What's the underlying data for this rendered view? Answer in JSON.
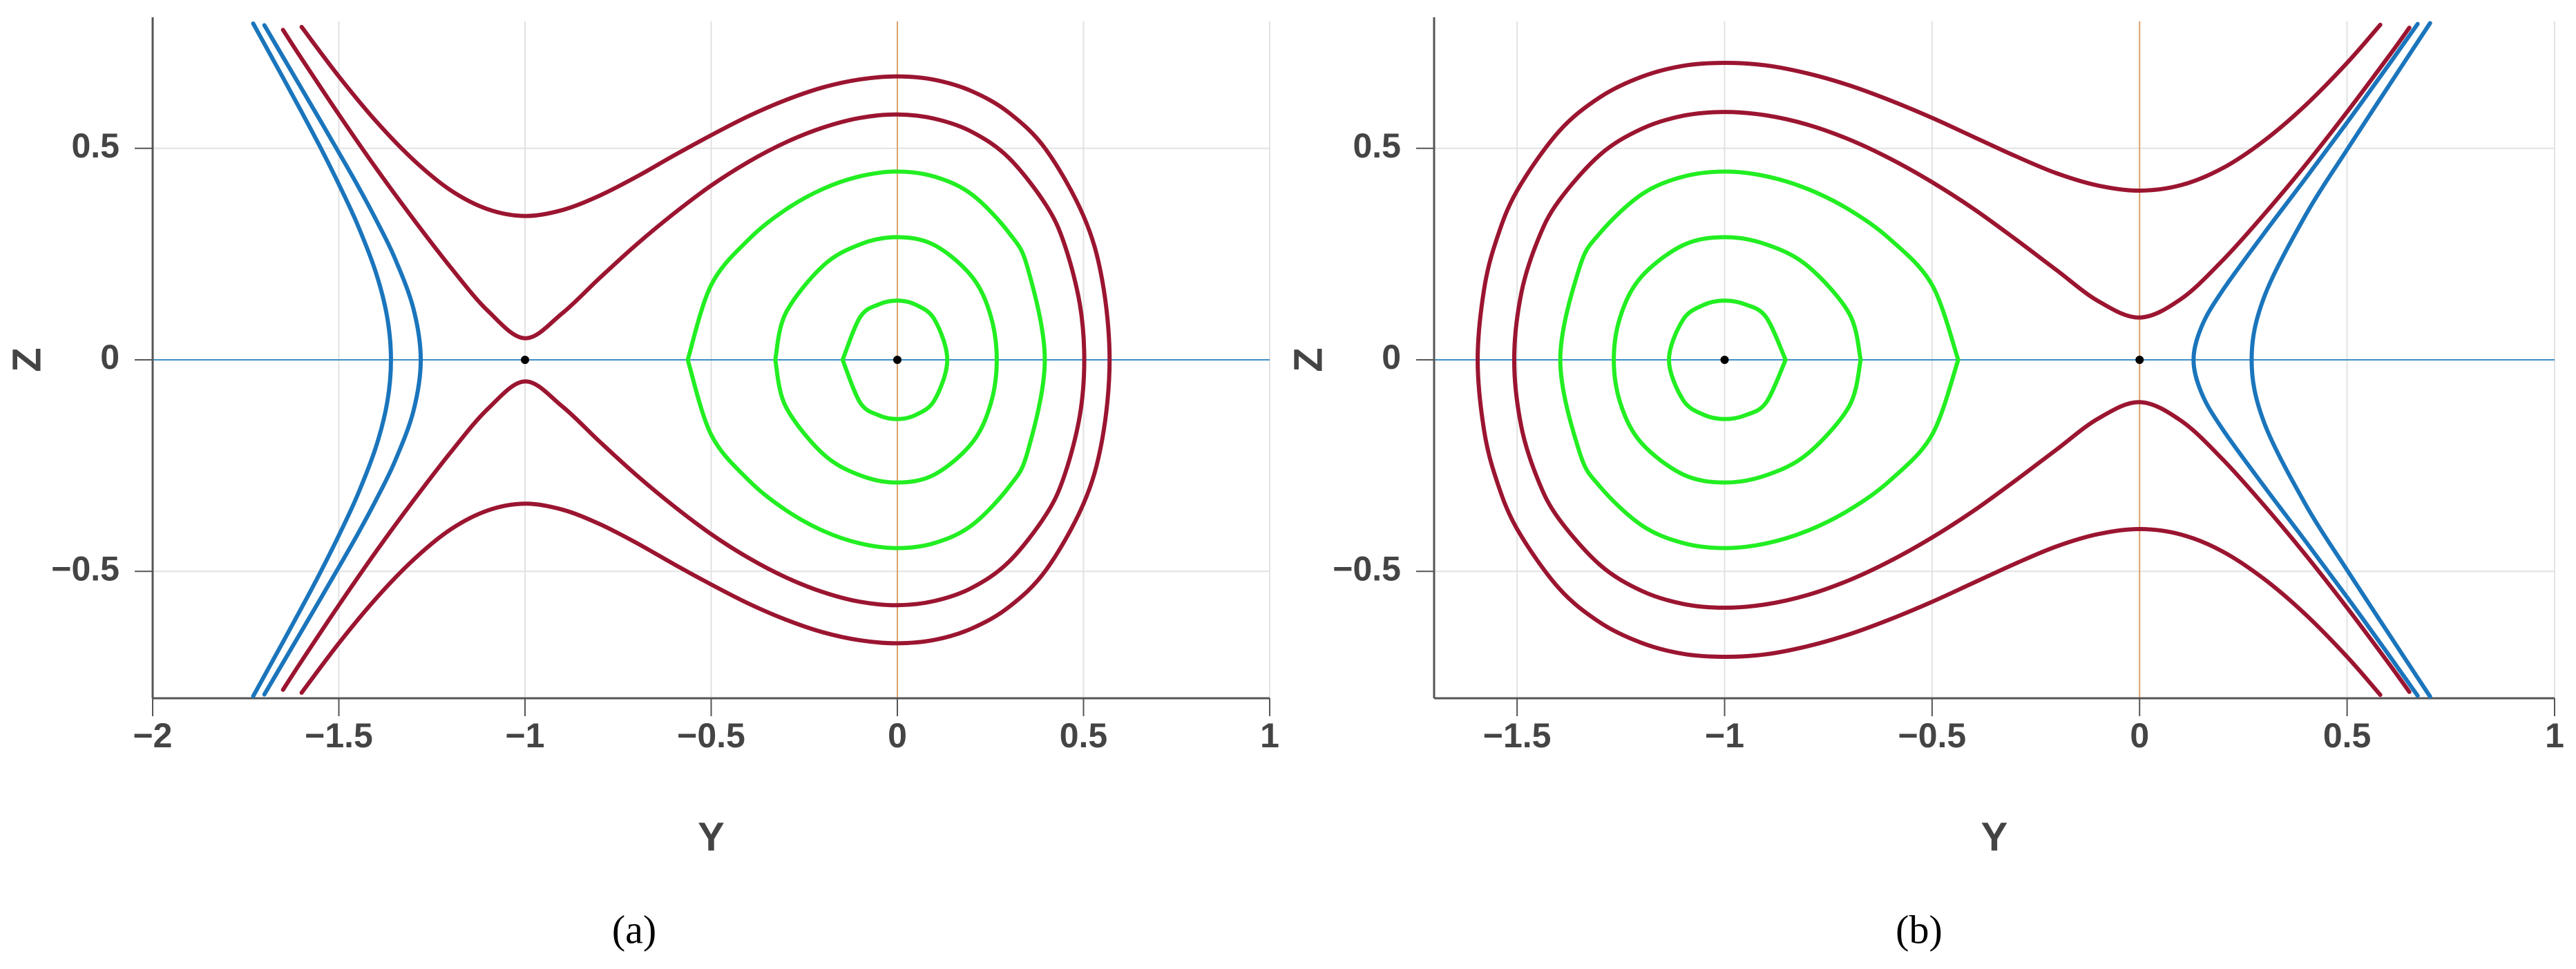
{
  "chart_data": [
    {
      "type": "line",
      "caption": "(a)",
      "xlabel": "Y",
      "ylabel": "Z",
      "xlim": [
        -2,
        1
      ],
      "ylim": [
        -0.8,
        0.8
      ],
      "xticks": [
        {
          "value": -2,
          "label": "−2"
        },
        {
          "value": -1.5,
          "label": "−1.5"
        },
        {
          "value": -1,
          "label": "−1"
        },
        {
          "value": -0.5,
          "label": "−0.5"
        },
        0,
        0.5,
        1
      ],
      "yticks": [
        {
          "value": -0.5,
          "label": "−0.5"
        },
        0,
        0.5
      ],
      "grid": true,
      "series": [
        {
          "color": "#1a75bc",
          "x": [
            -1.73,
            -1.7,
            -1.65,
            -1.6,
            -1.55,
            -1.5,
            -1.45,
            -1.4,
            -1.37,
            -1.36,
            -1.37,
            -1.4,
            -1.45,
            -1.5,
            -1.55,
            -1.6,
            -1.65,
            -1.7,
            -1.73
          ],
          "values": [
            0.795,
            0.747,
            0.667,
            0.586,
            0.503,
            0.415,
            0.32,
            0.205,
            0.1,
            0,
            -0.1,
            -0.205,
            -0.32,
            -0.415,
            -0.503,
            -0.586,
            -0.667,
            -0.747,
            -0.795
          ]
        },
        {
          "color": "#1a75bc",
          "x": [
            -1.7,
            -1.65,
            -1.6,
            -1.55,
            -1.5,
            -1.45,
            -1.4,
            -1.35,
            -1.3,
            -1.28,
            -1.3,
            -1.35,
            -1.4,
            -1.45,
            -1.5,
            -1.55,
            -1.6,
            -1.65,
            -1.7
          ],
          "values": [
            0.791,
            0.716,
            0.641,
            0.566,
            0.49,
            0.413,
            0.331,
            0.241,
            0.122,
            0,
            -0.122,
            -0.241,
            -0.331,
            -0.413,
            -0.49,
            -0.566,
            -0.641,
            -0.716,
            -0.791
          ]
        },
        {
          "color": "#9b1530",
          "x": [
            -1.65,
            -1.6,
            -1.5,
            -1.4,
            -1.3,
            -1.2,
            -1.1,
            -1,
            -0.9,
            -0.8,
            -0.7,
            -0.6,
            -0.5,
            -0.4,
            -0.3,
            -0.2,
            -0.1,
            0,
            0.1,
            0.2,
            0.3,
            0.4,
            0.45,
            0.49,
            0.502,
            0.49,
            0.45,
            0.4,
            0.3,
            0.2,
            0.1,
            0,
            -0.1,
            -0.2,
            -0.3,
            -0.4,
            -0.5,
            -0.6,
            -0.7,
            -0.8,
            -0.9,
            -1,
            -1.1,
            -1.2,
            -1.3,
            -1.4,
            -1.5,
            -1.6,
            -1.65
          ],
          "values": [
            0.78,
            0.712,
            0.58,
            0.453,
            0.333,
            0.219,
            0.116,
            0.051,
            0.11,
            0.193,
            0.273,
            0.346,
            0.412,
            0.468,
            0.514,
            0.549,
            0.572,
            0.58,
            0.57,
            0.539,
            0.477,
            0.365,
            0.27,
            0.132,
            0,
            -0.132,
            -0.27,
            -0.365,
            -0.477,
            -0.539,
            -0.57,
            -0.58,
            -0.572,
            -0.549,
            -0.514,
            -0.468,
            -0.412,
            -0.346,
            -0.273,
            -0.193,
            -0.11,
            -0.051,
            -0.116,
            -0.219,
            -0.333,
            -0.453,
            -0.58,
            -0.712,
            -0.78
          ]
        },
        {
          "color": "#9b1530",
          "x": [
            -1.6,
            -1.5,
            -1.4,
            -1.3,
            -1.2,
            -1.1,
            -1,
            -0.9,
            -0.8,
            -0.7,
            -0.6,
            -0.5,
            -0.4,
            -0.3,
            -0.2,
            -0.1,
            0,
            0.1,
            0.2,
            0.3,
            0.4,
            0.5,
            0.55,
            0.57,
            0.55,
            0.5,
            0.4,
            0.3,
            0.2,
            0.1,
            0,
            -0.1,
            -0.2,
            -0.3,
            -0.4,
            -0.5,
            -0.6,
            -0.7,
            -0.8,
            -0.9,
            -1,
            -1.1,
            -1.2,
            -1.3,
            -1.4,
            -1.5,
            -1.6
          ],
          "values": [
            0.787,
            0.67,
            0.564,
            0.473,
            0.401,
            0.356,
            0.34,
            0.354,
            0.388,
            0.433,
            0.483,
            0.531,
            0.576,
            0.614,
            0.644,
            0.663,
            0.67,
            0.662,
            0.635,
            0.584,
            0.496,
            0.34,
            0.189,
            0,
            -0.189,
            -0.34,
            -0.496,
            -0.584,
            -0.635,
            -0.662,
            -0.67,
            -0.663,
            -0.644,
            -0.614,
            -0.576,
            -0.531,
            -0.483,
            -0.433,
            -0.388,
            -0.354,
            -0.34,
            -0.356,
            -0.401,
            -0.473,
            -0.564,
            -0.67,
            -0.787
          ]
        },
        {
          "color": "#22ee22",
          "x": [
            -0.147,
            -0.1,
            -0.05,
            0,
            0.05,
            0.1,
            0.134,
            0.1,
            0.05,
            0,
            -0.05,
            -0.1,
            -0.147
          ],
          "values": [
            0,
            0.101,
            0.131,
            0.14,
            0.13,
            0.095,
            0,
            -0.095,
            -0.13,
            -0.14,
            -0.131,
            -0.101,
            0
          ]
        },
        {
          "color": "#22ee22",
          "x": [
            -0.328,
            -0.3,
            -0.2,
            -0.1,
            0,
            0.1,
            0.2,
            0.25,
            0.267,
            0.25,
            0.2,
            0.1,
            0,
            -0.1,
            -0.2,
            -0.3,
            -0.328
          ],
          "values": [
            0,
            0.11,
            0.222,
            0.273,
            0.29,
            0.271,
            0.197,
            0.106,
            0,
            -0.106,
            -0.197,
            -0.271,
            -0.29,
            -0.273,
            -0.222,
            -0.11,
            0
          ]
        },
        {
          "color": "#22ee22",
          "x": [
            -0.563,
            -0.5,
            -0.4,
            -0.3,
            -0.2,
            -0.1,
            0,
            0.1,
            0.2,
            0.3,
            0.35,
            0.396,
            0.35,
            0.3,
            0.2,
            0.1,
            0,
            -0.1,
            -0.2,
            -0.3,
            -0.4,
            -0.5,
            -0.563
          ],
          "values": [
            0,
            0.177,
            0.284,
            0.355,
            0.404,
            0.434,
            0.445,
            0.433,
            0.391,
            0.3,
            0.217,
            0,
            -0.217,
            -0.3,
            -0.391,
            -0.433,
            -0.445,
            -0.434,
            -0.404,
            -0.355,
            -0.284,
            -0.177,
            0
          ]
        }
      ],
      "markers": {
        "color": "#000000",
        "x": [
          -1,
          0
        ],
        "values": [
          0,
          0
        ]
      }
    },
    {
      "type": "line",
      "caption": "(b)",
      "xlabel": "Y",
      "ylabel": "Z",
      "xlim": [
        -1.7,
        1
      ],
      "ylim": [
        -0.8,
        0.8
      ],
      "xticks": [
        {
          "value": -1.5,
          "label": "−1.5"
        },
        {
          "value": -1,
          "label": "−1"
        },
        {
          "value": -0.5,
          "label": "−0.5"
        },
        0,
        0.5,
        1
      ],
      "yticks": [
        {
          "value": -0.5,
          "label": "−0.5"
        },
        0,
        0.5
      ],
      "grid": true,
      "series": [
        {
          "color": "#1a75bc",
          "x": [
            0.67,
            0.6,
            0.5,
            0.4,
            0.3,
            0.2,
            0.15,
            0.13,
            0.15,
            0.2,
            0.3,
            0.4,
            0.5,
            0.6,
            0.67
          ],
          "values": [
            0.794,
            0.697,
            0.561,
            0.429,
            0.299,
            0.164,
            0.08,
            0,
            -0.08,
            -0.164,
            -0.299,
            -0.429,
            -0.561,
            -0.697,
            -0.794
          ]
        },
        {
          "color": "#1a75bc",
          "x": [
            0.7,
            0.6,
            0.5,
            0.4,
            0.3,
            0.27,
            0.3,
            0.4,
            0.5,
            0.6,
            0.7
          ],
          "values": [
            0.796,
            0.647,
            0.497,
            0.342,
            0.148,
            0,
            -0.148,
            -0.342,
            -0.497,
            -0.647,
            -0.796
          ]
        },
        {
          "color": "#9b1530",
          "x": [
            0.65,
            0.6,
            0.5,
            0.4,
            0.3,
            0.2,
            0.1,
            0,
            -0.1,
            -0.2,
            -0.3,
            -0.4,
            -0.5,
            -0.6,
            -0.7,
            -0.8,
            -0.9,
            -1,
            -1.1,
            -1.2,
            -1.3,
            -1.4,
            -1.45,
            -1.49,
            -1.507,
            -1.49,
            -1.45,
            -1.4,
            -1.3,
            -1.2,
            -1.1,
            -1,
            -0.9,
            -0.8,
            -0.7,
            -0.6,
            -0.5,
            -0.4,
            -0.3,
            -0.2,
            -0.1,
            0,
            0.1,
            0.2,
            0.3,
            0.4,
            0.5,
            0.6,
            0.65
          ],
          "values": [
            0.785,
            0.717,
            0.586,
            0.461,
            0.344,
            0.235,
            0.144,
            0.1,
            0.139,
            0.212,
            0.286,
            0.357,
            0.42,
            0.475,
            0.521,
            0.556,
            0.578,
            0.586,
            0.577,
            0.546,
            0.485,
            0.375,
            0.283,
            0.157,
            0,
            -0.157,
            -0.283,
            -0.375,
            -0.485,
            -0.546,
            -0.577,
            -0.586,
            -0.578,
            -0.556,
            -0.521,
            -0.475,
            -0.42,
            -0.357,
            -0.286,
            -0.212,
            -0.139,
            -0.1,
            -0.144,
            -0.235,
            -0.344,
            -0.461,
            -0.586,
            -0.717,
            -0.785
          ]
        },
        {
          "color": "#9b1530",
          "x": [
            0.58,
            0.5,
            0.4,
            0.3,
            0.2,
            0.1,
            0,
            -0.1,
            -0.2,
            -0.3,
            -0.4,
            -0.5,
            -0.6,
            -0.7,
            -0.8,
            -0.9,
            -1,
            -1.1,
            -1.2,
            -1.3,
            -1.4,
            -1.5,
            -1.55,
            -1.58,
            -1.595,
            -1.58,
            -1.55,
            -1.5,
            -1.4,
            -1.3,
            -1.2,
            -1.1,
            -1,
            -0.9,
            -0.8,
            -0.7,
            -0.6,
            -0.5,
            -0.4,
            -0.3,
            -0.2,
            -0.1,
            0,
            0.1,
            0.2,
            0.3,
            0.4,
            0.5,
            0.58
          ],
          "values": [
            0.792,
            0.702,
            0.602,
            0.518,
            0.453,
            0.413,
            0.4,
            0.412,
            0.441,
            0.482,
            0.527,
            0.572,
            0.613,
            0.649,
            0.677,
            0.696,
            0.702,
            0.695,
            0.669,
            0.621,
            0.539,
            0.4,
            0.283,
            0.164,
            0,
            -0.164,
            -0.283,
            -0.4,
            -0.539,
            -0.621,
            -0.669,
            -0.695,
            -0.702,
            -0.696,
            -0.677,
            -0.649,
            -0.613,
            -0.572,
            -0.527,
            -0.482,
            -0.441,
            -0.412,
            -0.4,
            -0.413,
            -0.453,
            -0.518,
            -0.602,
            -0.702,
            -0.792
          ]
        },
        {
          "color": "#22ee22",
          "x": [
            -0.853,
            -0.9,
            -0.95,
            -1,
            -1.05,
            -1.1,
            -1.134,
            -1.1,
            -1.05,
            -1,
            -0.95,
            -0.9,
            -0.853
          ],
          "values": [
            0,
            0.101,
            0.131,
            0.14,
            0.13,
            0.095,
            0,
            -0.095,
            -0.13,
            -0.14,
            -0.131,
            -0.101,
            0
          ]
        },
        {
          "color": "#22ee22",
          "x": [
            -0.672,
            -0.7,
            -0.8,
            -0.9,
            -1,
            -1.1,
            -1.2,
            -1.25,
            -1.267,
            -1.25,
            -1.2,
            -1.1,
            -1,
            -0.9,
            -0.8,
            -0.7,
            -0.672
          ],
          "values": [
            0,
            0.11,
            0.222,
            0.273,
            0.29,
            0.271,
            0.197,
            0.106,
            0,
            -0.106,
            -0.197,
            -0.271,
            -0.29,
            -0.273,
            -0.222,
            -0.11,
            0
          ]
        },
        {
          "color": "#22ee22",
          "x": [
            -0.437,
            -0.5,
            -0.6,
            -0.7,
            -0.8,
            -0.9,
            -1,
            -1.1,
            -1.2,
            -1.3,
            -1.35,
            -1.396,
            -1.35,
            -1.3,
            -1.2,
            -1.1,
            -1,
            -0.9,
            -0.8,
            -0.7,
            -0.6,
            -0.5,
            -0.437
          ],
          "values": [
            0,
            0.177,
            0.284,
            0.355,
            0.404,
            0.434,
            0.445,
            0.433,
            0.391,
            0.3,
            0.217,
            0,
            -0.217,
            -0.3,
            -0.391,
            -0.433,
            -0.445,
            -0.434,
            -0.404,
            -0.355,
            -0.284,
            -0.177,
            0
          ]
        }
      ],
      "markers": {
        "color": "#000000",
        "x": [
          -1,
          0
        ],
        "values": [
          0,
          0
        ]
      }
    }
  ]
}
